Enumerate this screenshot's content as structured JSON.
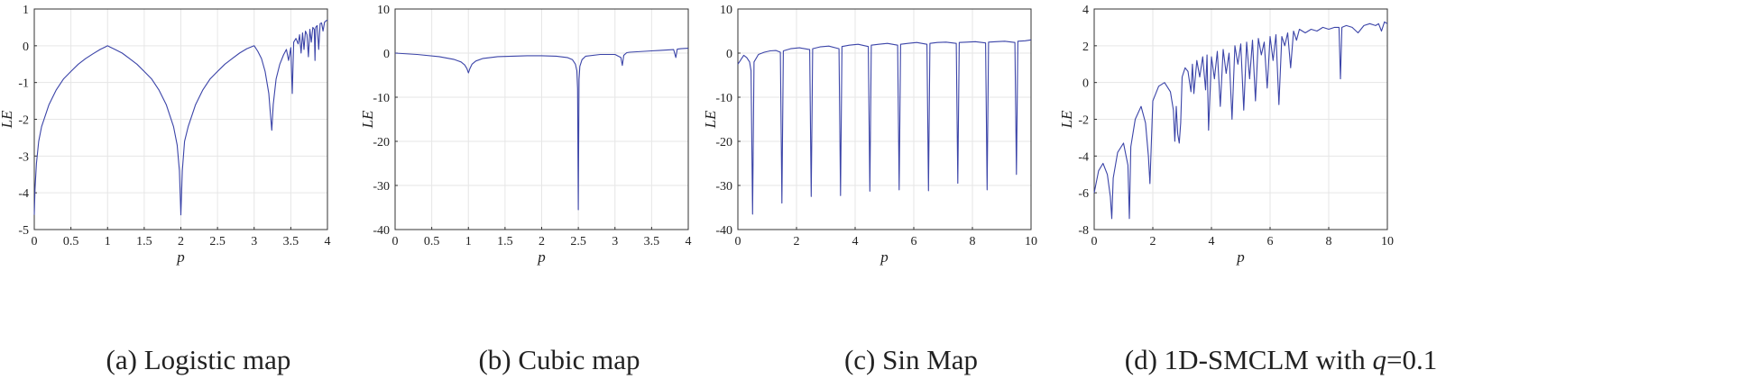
{
  "chart_data": [
    {
      "type": "line",
      "caption_prefix": "(a) Logistic map",
      "caption_param": "",
      "caption_value": "",
      "xlabel": "p",
      "ylabel": "LE",
      "xlim": [
        0,
        4
      ],
      "ylim": [
        -5,
        1
      ],
      "xticks": [
        "0",
        "0.5",
        "1",
        "1.5",
        "2",
        "2.5",
        "3",
        "3.5",
        "4"
      ],
      "yticks": [
        "-5",
        "-4",
        "-3",
        "-2",
        "-1",
        "0",
        "1"
      ],
      "grid": true,
      "line_color": "#3b44a8",
      "series": [
        {
          "x": [
            0,
            0.01,
            0.03,
            0.06,
            0.1,
            0.2,
            0.3,
            0.4,
            0.5,
            0.6,
            0.7,
            0.8,
            0.9,
            0.97,
            1.0,
            1.03,
            1.1,
            1.2,
            1.3,
            1.4,
            1.5,
            1.6,
            1.7,
            1.8,
            1.9,
            1.95,
            1.98,
            2.0,
            2.02,
            2.05,
            2.1,
            2.2,
            2.3,
            2.4,
            2.5,
            2.6,
            2.7,
            2.8,
            2.9,
            3.0,
            3.05,
            3.1,
            3.15,
            3.2,
            3.22,
            3.24,
            3.26,
            3.3,
            3.35,
            3.4,
            3.44,
            3.47,
            3.5,
            3.52,
            3.54,
            3.57,
            3.6,
            3.62,
            3.64,
            3.66,
            3.68,
            3.7,
            3.72,
            3.74,
            3.76,
            3.78,
            3.8,
            3.82,
            3.83,
            3.84,
            3.86,
            3.88,
            3.9,
            3.92,
            3.94,
            3.96,
            3.98,
            4.0
          ],
          "y": [
            -4.6,
            -3.9,
            -3.2,
            -2.6,
            -2.2,
            -1.6,
            -1.2,
            -0.9,
            -0.7,
            -0.5,
            -0.35,
            -0.22,
            -0.1,
            -0.03,
            0.0,
            -0.03,
            -0.1,
            -0.2,
            -0.35,
            -0.5,
            -0.7,
            -0.9,
            -1.2,
            -1.6,
            -2.2,
            -2.7,
            -3.4,
            -4.6,
            -3.4,
            -2.6,
            -2.2,
            -1.6,
            -1.2,
            -0.9,
            -0.7,
            -0.5,
            -0.35,
            -0.2,
            -0.08,
            0.0,
            -0.15,
            -0.35,
            -0.7,
            -1.3,
            -1.8,
            -2.3,
            -1.6,
            -0.9,
            -0.5,
            -0.25,
            -0.1,
            -0.4,
            -0.05,
            -1.3,
            0.1,
            0.2,
            0.05,
            0.3,
            -0.2,
            0.35,
            -0.1,
            0.4,
            0.3,
            -0.3,
            0.45,
            0.1,
            0.5,
            0.45,
            -0.4,
            0.5,
            0.55,
            -0.1,
            0.6,
            0.62,
            0.4,
            0.64,
            0.68,
            0.7
          ]
        }
      ]
    },
    {
      "type": "line",
      "caption_prefix": "(b) Cubic map",
      "caption_param": "",
      "caption_value": "",
      "xlabel": "p",
      "ylabel": "LE",
      "xlim": [
        0,
        4
      ],
      "ylim": [
        -40,
        10
      ],
      "xticks": [
        "0",
        "0.5",
        "1",
        "1.5",
        "2",
        "2.5",
        "3",
        "3.5",
        "4"
      ],
      "yticks": [
        "-40",
        "-30",
        "-20",
        "-10",
        "0",
        "10"
      ],
      "grid": true,
      "line_color": "#3b44a8",
      "series": [
        {
          "x": [
            0,
            0.3,
            0.6,
            0.8,
            0.9,
            0.95,
            0.98,
            1.0,
            1.02,
            1.05,
            1.1,
            1.2,
            1.4,
            1.6,
            1.8,
            2.0,
            2.2,
            2.35,
            2.42,
            2.46,
            2.48,
            2.49,
            2.5,
            2.51,
            2.52,
            2.55,
            2.6,
            2.8,
            3.0,
            3.08,
            3.1,
            3.12,
            3.16,
            3.2,
            3.3,
            3.4,
            3.5,
            3.6,
            3.7,
            3.8,
            3.83,
            3.85,
            3.9,
            4.0
          ],
          "y": [
            0,
            -0.3,
            -0.8,
            -1.4,
            -2.0,
            -2.7,
            -3.5,
            -4.5,
            -3.5,
            -2.5,
            -1.8,
            -1.2,
            -0.8,
            -0.7,
            -0.6,
            -0.6,
            -0.7,
            -1.0,
            -1.5,
            -2.5,
            -4.0,
            -8.0,
            -35.5,
            -6.0,
            -3.0,
            -1.5,
            -0.7,
            -0.3,
            -0.3,
            -1.0,
            -2.8,
            -0.5,
            0.1,
            0.2,
            0.3,
            0.4,
            0.5,
            0.6,
            0.7,
            0.8,
            -1.0,
            0.9,
            1.0,
            1.1
          ]
        }
      ]
    },
    {
      "type": "line",
      "caption_prefix": "(c) Sin Map",
      "caption_param": "",
      "caption_value": "",
      "xlabel": "p",
      "ylabel": "LE",
      "xlim": [
        0,
        10
      ],
      "ylim": [
        -40,
        10
      ],
      "xticks": [
        "0",
        "2",
        "4",
        "6",
        "8",
        "10"
      ],
      "yticks": [
        "-40",
        "-30",
        "-20",
        "-10",
        "0",
        "10"
      ],
      "grid": true,
      "line_color": "#3b44a8",
      "series": [
        {
          "x": [
            0,
            0.1,
            0.2,
            0.3,
            0.4,
            0.45,
            0.5,
            0.55,
            0.7,
            0.9,
            1.1,
            1.3,
            1.45,
            1.5,
            1.55,
            1.8,
            2.1,
            2.45,
            2.5,
            2.55,
            2.8,
            3.1,
            3.45,
            3.5,
            3.55,
            3.8,
            4.1,
            4.45,
            4.5,
            4.55,
            4.8,
            5.1,
            5.45,
            5.5,
            5.55,
            5.8,
            6.1,
            6.45,
            6.5,
            6.55,
            6.8,
            7.1,
            7.45,
            7.5,
            7.55,
            7.8,
            8.1,
            8.45,
            8.5,
            8.55,
            8.8,
            9.1,
            9.45,
            9.5,
            9.55,
            9.8,
            10.0
          ],
          "y": [
            -2.5,
            -1.5,
            -0.5,
            -1.0,
            -2.0,
            -4.0,
            -36.5,
            -2.0,
            -0.3,
            0.2,
            0.5,
            0.6,
            0.2,
            -34.0,
            0.5,
            1.0,
            1.2,
            0.8,
            -32.5,
            1.0,
            1.4,
            1.6,
            1.0,
            -32.3,
            1.5,
            1.8,
            2.0,
            1.5,
            -31.3,
            1.8,
            2.0,
            2.2,
            1.8,
            -31.0,
            2.0,
            2.2,
            2.4,
            2.0,
            -31.2,
            2.2,
            2.4,
            2.5,
            2.2,
            -29.5,
            2.4,
            2.5,
            2.6,
            2.3,
            -31.0,
            2.5,
            2.6,
            2.7,
            2.4,
            -27.5,
            2.7,
            2.8,
            3.0
          ]
        }
      ]
    },
    {
      "type": "line",
      "caption_prefix": "(d) 1D-SMCLM with ",
      "caption_param": "q",
      "caption_value": "=0.1",
      "xlabel": "p",
      "ylabel": "LE",
      "xlim": [
        0,
        10
      ],
      "ylim": [
        -8,
        4
      ],
      "xticks": [
        "0",
        "2",
        "4",
        "6",
        "8",
        "10"
      ],
      "yticks": [
        "-8",
        "-6",
        "-4",
        "-2",
        "0",
        "2",
        "4"
      ],
      "grid": true,
      "line_color": "#3b44a8",
      "series": [
        {
          "x": [
            0,
            0.15,
            0.3,
            0.45,
            0.55,
            0.6,
            0.65,
            0.8,
            1.0,
            1.15,
            1.2,
            1.25,
            1.4,
            1.6,
            1.75,
            1.85,
            1.9,
            2.0,
            2.2,
            2.4,
            2.6,
            2.7,
            2.75,
            2.8,
            2.85,
            2.9,
            2.95,
            3.0,
            3.1,
            3.2,
            3.3,
            3.35,
            3.4,
            3.5,
            3.6,
            3.7,
            3.8,
            3.85,
            3.9,
            4.0,
            4.1,
            4.2,
            4.3,
            4.4,
            4.5,
            4.6,
            4.7,
            4.8,
            4.9,
            5.0,
            5.1,
            5.2,
            5.3,
            5.4,
            5.5,
            5.6,
            5.7,
            5.8,
            5.9,
            6.0,
            6.1,
            6.2,
            6.3,
            6.4,
            6.5,
            6.6,
            6.7,
            6.8,
            6.9,
            7.0,
            7.2,
            7.4,
            7.6,
            7.8,
            8.0,
            8.2,
            8.35,
            8.4,
            8.45,
            8.6,
            8.8,
            9.0,
            9.2,
            9.4,
            9.6,
            9.7,
            9.8,
            9.9,
            10.0
          ],
          "y": [
            -6.0,
            -4.8,
            -4.4,
            -5.0,
            -6.2,
            -7.4,
            -5.2,
            -3.8,
            -3.3,
            -4.5,
            -7.4,
            -3.5,
            -2.0,
            -1.3,
            -2.2,
            -4.0,
            -5.5,
            -1.0,
            -0.2,
            0.0,
            -0.5,
            -1.5,
            -3.2,
            -1.3,
            -2.8,
            -3.3,
            -2.2,
            0.3,
            0.8,
            0.6,
            -0.5,
            1.0,
            -0.6,
            1.2,
            0.3,
            1.4,
            -0.4,
            1.5,
            -2.6,
            1.4,
            0.2,
            1.7,
            -1.3,
            1.8,
            0.5,
            1.6,
            -2.0,
            2.0,
            1.0,
            2.1,
            -1.5,
            2.2,
            0.2,
            2.3,
            -1.0,
            2.4,
            1.5,
            2.2,
            -0.3,
            2.5,
            1.2,
            2.6,
            -1.2,
            2.5,
            2.0,
            2.7,
            0.8,
            2.8,
            2.3,
            2.9,
            2.7,
            2.9,
            2.8,
            3.0,
            2.9,
            3.0,
            3.0,
            0.2,
            3.0,
            3.1,
            3.0,
            2.7,
            3.1,
            3.2,
            3.1,
            3.2,
            2.8,
            3.3,
            3.2
          ]
        }
      ]
    }
  ]
}
